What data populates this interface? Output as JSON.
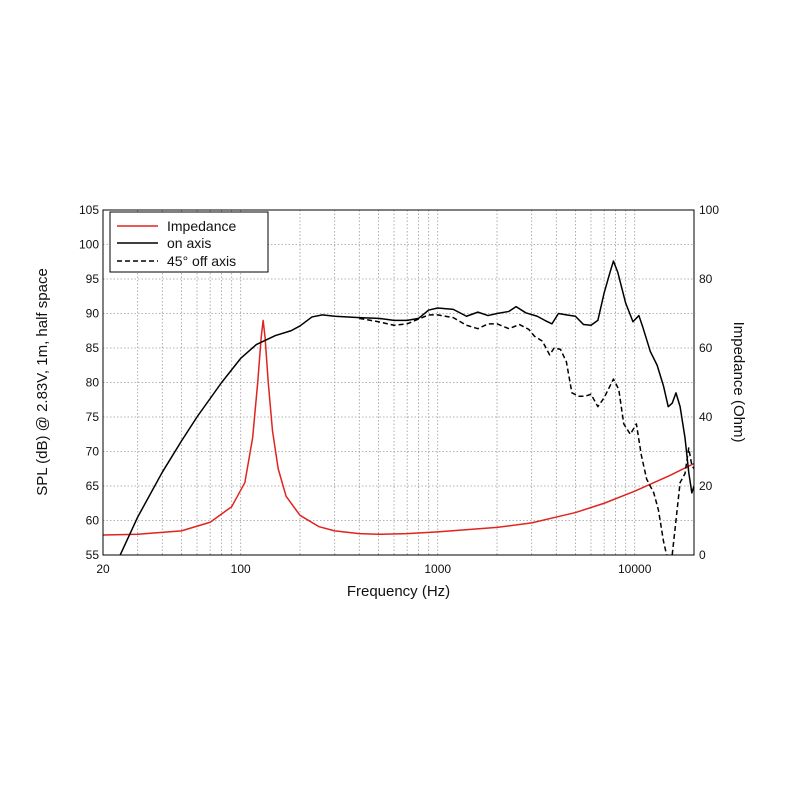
{
  "chart_data": {
    "type": "line",
    "xlabel": "Frequency (Hz)",
    "ylabel": "SPL (dB) @ 2.83V, 1m, half space",
    "y2label": "Impedance (Ohm)",
    "xscale": "log",
    "xlim": [
      20,
      20000
    ],
    "ylim": [
      55,
      105
    ],
    "y2lim": [
      0,
      100
    ],
    "x_tick_labels": [
      "20",
      "100",
      "1000",
      "10000"
    ],
    "y_ticks": [
      55,
      60,
      65,
      70,
      75,
      80,
      85,
      90,
      95,
      100,
      105
    ],
    "y2_ticks": [
      0,
      20,
      40,
      60,
      80,
      100
    ],
    "grid": true,
    "legend_position": "top-left",
    "series": [
      {
        "name": "Impedance",
        "axis": "right",
        "color": "#e0231e",
        "style": "solid",
        "points": [
          [
            20,
            5.8
          ],
          [
            30,
            6.0
          ],
          [
            50,
            7.0
          ],
          [
            70,
            9.5
          ],
          [
            90,
            14.0
          ],
          [
            105,
            21.0
          ],
          [
            115,
            34.0
          ],
          [
            122,
            50.0
          ],
          [
            127,
            63.0
          ],
          [
            130,
            68.0
          ],
          [
            133,
            63.0
          ],
          [
            138,
            50.0
          ],
          [
            145,
            36.0
          ],
          [
            155,
            25.0
          ],
          [
            170,
            17.0
          ],
          [
            200,
            11.5
          ],
          [
            250,
            8.2
          ],
          [
            300,
            7.0
          ],
          [
            400,
            6.2
          ],
          [
            500,
            6.0
          ],
          [
            700,
            6.2
          ],
          [
            1000,
            6.7
          ],
          [
            2000,
            8.0
          ],
          [
            3000,
            9.3
          ],
          [
            4000,
            11.0
          ],
          [
            5000,
            12.3
          ],
          [
            7000,
            15.0
          ],
          [
            10000,
            18.5
          ],
          [
            15000,
            23.0
          ],
          [
            20000,
            26.5
          ]
        ]
      },
      {
        "name": "on axis",
        "axis": "left",
        "color": "#000000",
        "style": "solid",
        "points": [
          [
            24,
            54.5
          ],
          [
            30,
            60.5
          ],
          [
            40,
            67.0
          ],
          [
            50,
            71.5
          ],
          [
            60,
            75.0
          ],
          [
            80,
            80.0
          ],
          [
            100,
            83.5
          ],
          [
            120,
            85.5
          ],
          [
            150,
            86.8
          ],
          [
            180,
            87.5
          ],
          [
            200,
            88.2
          ],
          [
            230,
            89.5
          ],
          [
            260,
            89.8
          ],
          [
            300,
            89.6
          ],
          [
            400,
            89.4
          ],
          [
            500,
            89.3
          ],
          [
            600,
            89.0
          ],
          [
            700,
            89.0
          ],
          [
            800,
            89.3
          ],
          [
            900,
            90.5
          ],
          [
            1000,
            90.8
          ],
          [
            1200,
            90.6
          ],
          [
            1400,
            89.6
          ],
          [
            1600,
            90.2
          ],
          [
            1800,
            89.7
          ],
          [
            2000,
            90.0
          ],
          [
            2300,
            90.3
          ],
          [
            2500,
            91.0
          ],
          [
            2800,
            90.1
          ],
          [
            3200,
            89.6
          ],
          [
            3500,
            89.0
          ],
          [
            3800,
            88.5
          ],
          [
            4100,
            90.0
          ],
          [
            4500,
            89.8
          ],
          [
            5000,
            89.6
          ],
          [
            5500,
            88.4
          ],
          [
            6000,
            88.3
          ],
          [
            6500,
            89.0
          ],
          [
            7000,
            93.0
          ],
          [
            7500,
            96.0
          ],
          [
            7800,
            97.6
          ],
          [
            8200,
            96.0
          ],
          [
            9000,
            91.5
          ],
          [
            9800,
            88.8
          ],
          [
            10500,
            89.7
          ],
          [
            11000,
            88.0
          ],
          [
            12000,
            84.5
          ],
          [
            13000,
            82.5
          ],
          [
            14000,
            79.5
          ],
          [
            14800,
            76.5
          ],
          [
            15500,
            77.0
          ],
          [
            16200,
            78.5
          ],
          [
            17000,
            76.5
          ],
          [
            18000,
            72.0
          ],
          [
            18800,
            67.0
          ],
          [
            19500,
            64.0
          ],
          [
            20000,
            65.0
          ]
        ]
      },
      {
        "name": "45° off axis",
        "axis": "left",
        "color": "#000000",
        "style": "dashed",
        "points": [
          [
            400,
            89.3
          ],
          [
            500,
            88.8
          ],
          [
            600,
            88.3
          ],
          [
            700,
            88.5
          ],
          [
            800,
            89.2
          ],
          [
            900,
            89.8
          ],
          [
            1000,
            89.8
          ],
          [
            1200,
            89.4
          ],
          [
            1400,
            88.3
          ],
          [
            1600,
            87.8
          ],
          [
            1800,
            88.5
          ],
          [
            2000,
            88.5
          ],
          [
            2300,
            87.8
          ],
          [
            2600,
            88.4
          ],
          [
            2900,
            87.7
          ],
          [
            3100,
            86.7
          ],
          [
            3400,
            86.0
          ],
          [
            3700,
            84.0
          ],
          [
            3900,
            85.0
          ],
          [
            4200,
            84.8
          ],
          [
            4500,
            83.0
          ],
          [
            4800,
            78.5
          ],
          [
            5200,
            78.0
          ],
          [
            5600,
            78.0
          ],
          [
            6000,
            78.3
          ],
          [
            6500,
            76.5
          ],
          [
            7000,
            77.8
          ],
          [
            7800,
            80.5
          ],
          [
            8300,
            79.0
          ],
          [
            8800,
            74.0
          ],
          [
            9500,
            72.5
          ],
          [
            10200,
            74.0
          ],
          [
            10800,
            69.5
          ],
          [
            11500,
            66.0
          ],
          [
            12500,
            64.0
          ],
          [
            13200,
            61.5
          ],
          [
            14000,
            57.0
          ],
          [
            14800,
            54.0
          ],
          [
            15500,
            55.0
          ],
          [
            16200,
            60.0
          ],
          [
            17000,
            65.5
          ],
          [
            18000,
            66.8
          ],
          [
            18800,
            70.5
          ],
          [
            19500,
            68.0
          ],
          [
            20000,
            67.5
          ]
        ]
      }
    ]
  }
}
